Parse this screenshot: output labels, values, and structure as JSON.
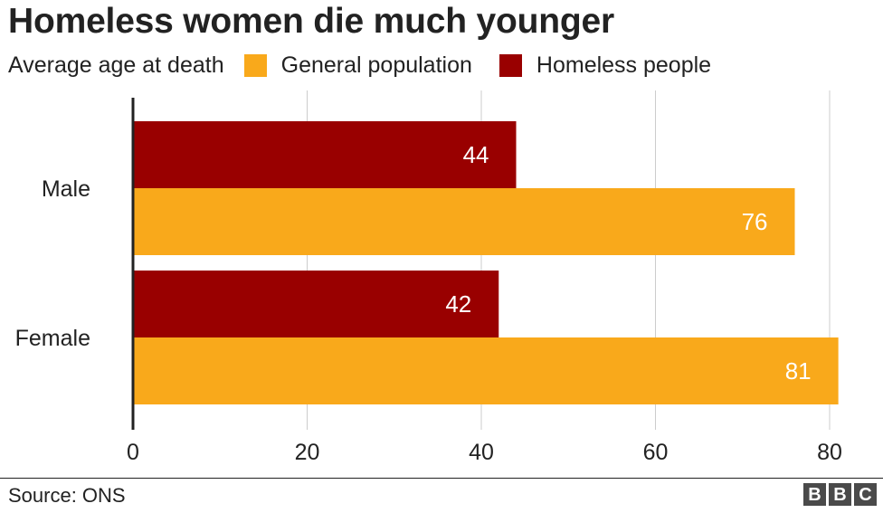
{
  "title": "Homeless women die much younger",
  "subtitle": "Average age at death",
  "legend": [
    {
      "label": "General population",
      "color": "#f9a91b"
    },
    {
      "label": "Homeless people",
      "color": "#990000"
    }
  ],
  "source": "Source: ONS",
  "logo_letters": [
    "B",
    "B",
    "C"
  ],
  "chart_data": {
    "type": "bar",
    "orientation": "horizontal",
    "title": "Homeless women die much younger",
    "subtitle": "Average age at death",
    "categories": [
      "Male",
      "Female"
    ],
    "series": [
      {
        "name": "Homeless people",
        "color": "#990000",
        "values": [
          44,
          42
        ]
      },
      {
        "name": "General population",
        "color": "#f9a91b",
        "values": [
          76,
          81
        ]
      }
    ],
    "xlim": [
      0,
      80
    ],
    "xticks": [
      0,
      20,
      40,
      60,
      80
    ],
    "grid": true,
    "data_labels": true,
    "legend_position": "top"
  }
}
